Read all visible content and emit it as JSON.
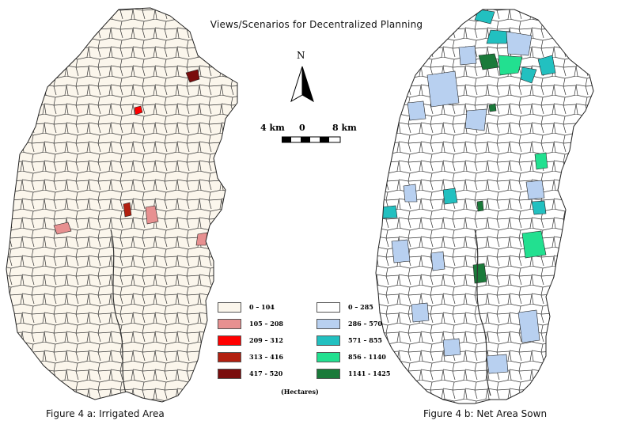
{
  "title": "Views/Scenarios for Decentralized Planning",
  "compass": {
    "north_label": "N",
    "icon": "north-arrow-icon"
  },
  "scale_bar": {
    "left_label": "4 km",
    "center_label": "0",
    "right_label": "8 km"
  },
  "legend_a": {
    "items": [
      {
        "label": "0 –  104",
        "color": "#fbf6ec"
      },
      {
        "label": "105 – 208",
        "color": "#e79090"
      },
      {
        "label": "209 – 312",
        "color": "#ff0000"
      },
      {
        "label": "313 – 416",
        "color": "#b22010"
      },
      {
        "label": "417 - 520",
        "color": "#7a0d0d"
      }
    ]
  },
  "legend_b": {
    "items": [
      {
        "label": "0 – 285",
        "color": "#ffffff"
      },
      {
        "label": "286 – 570",
        "color": "#b8d0f0"
      },
      {
        "label": "571 – 855",
        "color": "#22c0c0"
      },
      {
        "label": "856 - 1140",
        "color": "#22e090"
      },
      {
        "label": "1141 - 1425",
        "color": "#1a7a3a"
      }
    ]
  },
  "unit_label": "(Hectares)",
  "figure_a_caption": "Figure 4 a:  Irrigated Area",
  "figure_b_caption": "Figure 4 b:  Net Area Sown"
}
